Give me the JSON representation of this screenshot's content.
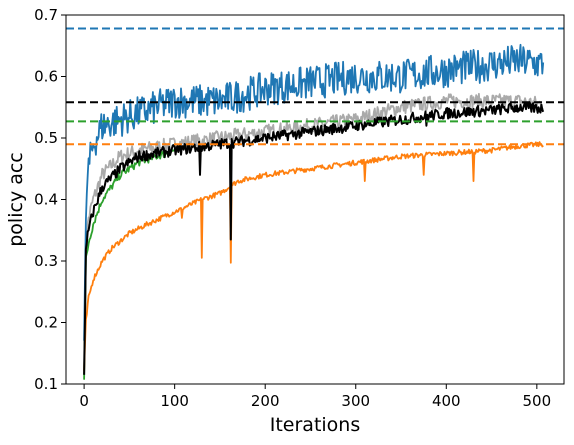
{
  "chart_data": {
    "type": "line",
    "title": "",
    "xlabel": "Iterations",
    "ylabel": "policy acc",
    "xlim": [
      -20,
      530
    ],
    "ylim": [
      0.1,
      0.7
    ],
    "xticks": [
      0,
      100,
      200,
      300,
      400,
      500
    ],
    "yticks": [
      0.1,
      0.2,
      0.3,
      0.4,
      0.5,
      0.6,
      0.7
    ],
    "xtick_labels": [
      "0",
      "100",
      "200",
      "300",
      "400",
      "500"
    ],
    "ytick_labels": [
      "0.1",
      "0.2",
      "0.3",
      "0.4",
      "0.5",
      "0.6",
      "0.7"
    ],
    "grid": false,
    "legend": null,
    "series": [
      {
        "color": "#aaaaaa",
        "style": "solid",
        "noise": 0.012,
        "x": [
          0,
          2,
          5,
          10,
          20,
          40,
          60,
          100,
          150,
          200,
          250,
          300,
          350,
          400,
          450,
          480,
          507
        ],
        "y": [
          0.14,
          0.32,
          0.37,
          0.4,
          0.44,
          0.47,
          0.48,
          0.49,
          0.5,
          0.51,
          0.52,
          0.53,
          0.55,
          0.56,
          0.56,
          0.56,
          0.555
        ]
      },
      {
        "color": "#2ca02c",
        "style": "solid",
        "noise": 0.006,
        "x": [
          0,
          2,
          5,
          10,
          20,
          40,
          60,
          80,
          100
        ],
        "y": [
          0.11,
          0.3,
          0.33,
          0.36,
          0.4,
          0.44,
          0.46,
          0.47,
          0.48
        ]
      },
      {
        "color": "#ff7f0e",
        "style": "solid",
        "noise": 0.004,
        "x": [
          0,
          2,
          5,
          10,
          20,
          30,
          50,
          70,
          100,
          130,
          150,
          170,
          200,
          250,
          300,
          350,
          400,
          450,
          480,
          507
        ],
        "y": [
          0.12,
          0.2,
          0.24,
          0.27,
          0.3,
          0.32,
          0.345,
          0.36,
          0.38,
          0.4,
          0.41,
          0.43,
          0.44,
          0.45,
          0.46,
          0.47,
          0.475,
          0.48,
          0.487,
          0.49
        ],
        "dips": [
          [
            108,
            0.37
          ],
          [
            130,
            0.305
          ],
          [
            162,
            0.297
          ],
          [
            310,
            0.43
          ],
          [
            375,
            0.44
          ],
          [
            430,
            0.43
          ]
        ]
      },
      {
        "color": "#1f77b4",
        "style": "solid",
        "noise": 0.028,
        "x": [
          0,
          3,
          5,
          10,
          20,
          40,
          60,
          100,
          150,
          200,
          250,
          300,
          350,
          400,
          450,
          480,
          507
        ],
        "y": [
          0.17,
          0.42,
          0.45,
          0.49,
          0.52,
          0.53,
          0.54,
          0.56,
          0.56,
          0.58,
          0.59,
          0.6,
          0.6,
          0.61,
          0.62,
          0.625,
          0.62
        ]
      },
      {
        "color": "#000000",
        "style": "solid",
        "noise": 0.009,
        "x": [
          0,
          2,
          5,
          10,
          20,
          40,
          60,
          100,
          150,
          200,
          250,
          300,
          350,
          400,
          450,
          480,
          507
        ],
        "y": [
          0.12,
          0.31,
          0.35,
          0.38,
          0.42,
          0.45,
          0.47,
          0.48,
          0.49,
          0.5,
          0.51,
          0.52,
          0.53,
          0.54,
          0.545,
          0.55,
          0.548
        ],
        "dips": [
          [
            128,
            0.44
          ],
          [
            162,
            0.335
          ],
          [
            378,
            0.52
          ]
        ]
      },
      {
        "color": "#1f77b4",
        "style": "dashed",
        "x": [
          -20,
          530
        ],
        "y": [
          0.678,
          0.678
        ]
      },
      {
        "color": "#000000",
        "style": "dashed",
        "x": [
          -20,
          530
        ],
        "y": [
          0.558,
          0.558
        ]
      },
      {
        "color": "#2ca02c",
        "style": "dashed",
        "x": [
          -20,
          530
        ],
        "y": [
          0.527,
          0.527
        ]
      },
      {
        "color": "#ff7f0e",
        "style": "dashed",
        "x": [
          -20,
          530
        ],
        "y": [
          0.49,
          0.49
        ]
      }
    ]
  }
}
